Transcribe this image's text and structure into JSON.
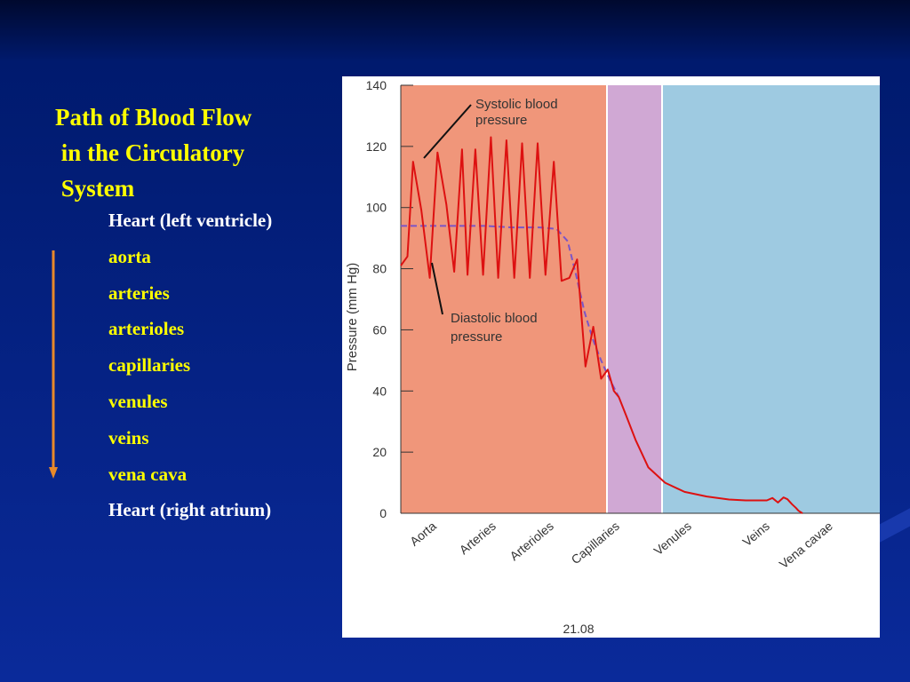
{
  "slide": {
    "title_lines": [
      "Path of Blood Flow",
      " in the Circulatory",
      " System"
    ],
    "steps": [
      {
        "label": "Heart (left ventricle)",
        "color": "white"
      },
      {
        "label": "aorta",
        "color": "yellow"
      },
      {
        "label": "arteries",
        "color": "yellow"
      },
      {
        "label": "arterioles",
        "color": "yellow"
      },
      {
        "label": "capillaries",
        "color": "yellow"
      },
      {
        "label": "venules",
        "color": "yellow"
      },
      {
        "label": "veins",
        "color": "yellow"
      },
      {
        "label": "vena cava",
        "color": "yellow"
      },
      {
        "label": "Heart (right atrium)",
        "color": "white"
      }
    ],
    "flow_arrow_icon": "arrow-down-icon",
    "colors": {
      "title": "#ffff00",
      "step_yellow": "#ffff00",
      "step_white": "#ffffff",
      "arrow": "#e8892a"
    }
  },
  "chart_data": {
    "type": "line",
    "ylabel": "Pressure (mm Hg)",
    "ylim": [
      0,
      140
    ],
    "yticks": [
      0,
      20,
      40,
      60,
      80,
      100,
      120,
      140
    ],
    "categories": [
      "Aorta",
      "Arteries",
      "Arterioles",
      "Capillaries",
      "Venules",
      "Veins",
      "Vena cavae"
    ],
    "figure_label": "21.08",
    "annotations": {
      "systolic": "Systolic blood\npressure",
      "diastolic": "Diastolic blood\npressure"
    },
    "regions": [
      {
        "name": "arterial",
        "color": "#f0967a"
      },
      {
        "name": "capillary",
        "color": "#d0a8d4"
      },
      {
        "name": "venous",
        "color": "#9ecae1"
      }
    ],
    "series": [
      {
        "key": "pressure",
        "color": "#dd1111",
        "x": [
          0,
          0.12,
          0.22,
          0.37,
          0.52,
          0.66,
          0.82,
          0.96,
          1.1,
          1.2,
          1.34,
          1.48,
          1.62,
          1.75,
          1.9,
          2.04,
          2.18,
          2.32,
          2.46,
          2.6,
          2.75,
          2.89,
          3.03,
          3.17,
          3.32,
          3.46,
          3.6,
          3.72,
          3.83,
          3.92,
          4.05,
          4.22,
          4.45,
          4.75,
          5.1,
          5.5,
          5.9,
          6.2,
          6.58,
          6.68,
          6.78,
          6.88,
          6.95,
          7.03,
          7.1,
          7.15,
          7.22
        ],
        "y": [
          81,
          84,
          115,
          99,
          77,
          118,
          101,
          79,
          119,
          78,
          119,
          78,
          123,
          77,
          122,
          77,
          121,
          77,
          121,
          78,
          115,
          76,
          77,
          83,
          48,
          61,
          44,
          47,
          40,
          38,
          32,
          24,
          15,
          10,
          7,
          5.5,
          4.5,
          4.2,
          4.2,
          5.0,
          3.5,
          5.2,
          4.6,
          3.0,
          1.8,
          0.8,
          0
        ]
      },
      {
        "key": "mean",
        "color": "#7a55c8",
        "x": [
          0,
          0.5,
          1.0,
          1.5,
          2.0,
          2.5,
          2.8,
          3.0,
          3.15,
          3.3,
          3.45,
          3.6,
          3.75,
          3.92
        ],
        "y": [
          94,
          94,
          94,
          94,
          93.5,
          93.5,
          93,
          89,
          78,
          66,
          57,
          50,
          44,
          38
        ]
      }
    ]
  }
}
